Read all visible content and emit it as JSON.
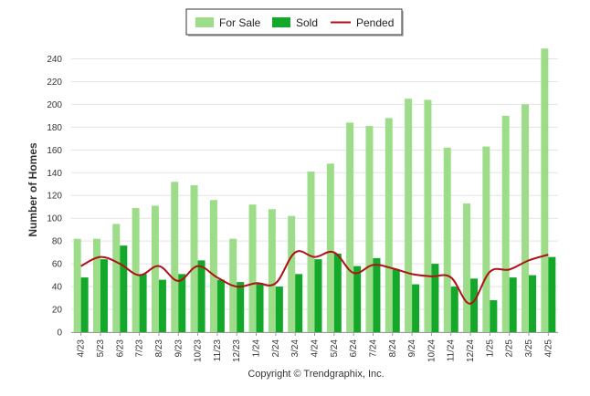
{
  "chart_data": {
    "type": "bar",
    "ylabel": "Number of Homes",
    "xlabel": "",
    "ylim": [
      0,
      250
    ],
    "yticks": [
      0,
      20,
      40,
      60,
      80,
      100,
      120,
      140,
      160,
      180,
      200,
      220,
      240
    ],
    "grid": true,
    "legend_position": "top-center",
    "categories": [
      "4/23",
      "5/23",
      "6/23",
      "7/23",
      "8/23",
      "9/23",
      "10/23",
      "11/23",
      "12/23",
      "1/24",
      "2/24",
      "3/24",
      "4/24",
      "5/24",
      "6/24",
      "7/24",
      "8/24",
      "9/24",
      "10/24",
      "11/24",
      "12/24",
      "1/25",
      "2/25",
      "3/25",
      "4/25"
    ],
    "series": [
      {
        "name": "For Sale",
        "kind": "bar",
        "color": "#9ddd8a",
        "values": [
          82,
          82,
          95,
          109,
          111,
          132,
          129,
          116,
          82,
          112,
          108,
          102,
          141,
          148,
          184,
          181,
          188,
          205,
          204,
          162,
          113,
          163,
          190,
          200,
          249
        ]
      },
      {
        "name": "Sold",
        "kind": "bar",
        "color": "#14a82a",
        "values": [
          48,
          64,
          76,
          51,
          46,
          51,
          63,
          46,
          44,
          43,
          40,
          51,
          64,
          69,
          58,
          65,
          55,
          42,
          60,
          40,
          47,
          28,
          48,
          50,
          66
        ]
      },
      {
        "name": "Pended",
        "kind": "line",
        "color": "#b01016",
        "values": [
          58,
          66,
          60,
          50,
          58,
          45,
          58,
          48,
          40,
          43,
          43,
          70,
          66,
          70,
          52,
          59,
          56,
          51,
          49,
          48,
          25,
          53,
          55,
          63,
          68
        ]
      }
    ]
  },
  "footer": {
    "copyright": "Copyright © Trendgraphix, Inc."
  }
}
